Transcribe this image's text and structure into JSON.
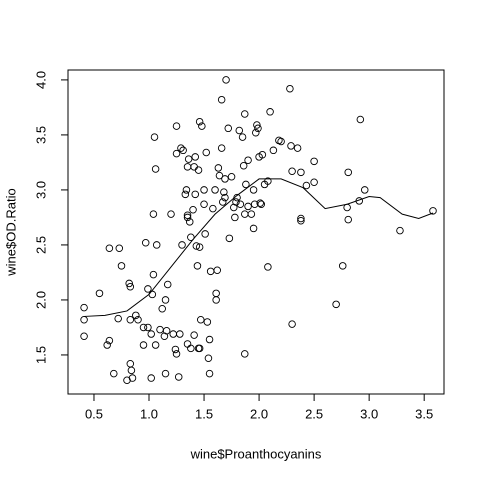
{
  "chart_data": {
    "type": "scatter",
    "x_label": "wine$Proanthocyanins",
    "y_label": "wine$OD.Ratio",
    "xlim": [
      0.264,
      3.68
    ],
    "ylim": [
      1.145,
      4.09
    ],
    "xticks": [
      0.5,
      {
        "value": 1.0,
        "label": "1.0"
      },
      1.5,
      {
        "value": 2.0,
        "label": "2.0"
      },
      2.5,
      {
        "value": 3.0,
        "label": "3.0"
      },
      3.5
    ],
    "yticks": [
      1.5,
      {
        "value": 2.0,
        "label": "2.0"
      },
      2.5,
      {
        "value": 3.0,
        "label": "3.0"
      },
      3.5,
      {
        "value": 4.0,
        "label": "4.0"
      }
    ],
    "color": "#000000",
    "x": [
      0.41,
      0.41,
      0.41,
      0.55,
      0.62,
      0.64,
      0.64,
      0.68,
      0.72,
      0.73,
      0.75,
      0.8,
      0.82,
      0.83,
      0.83,
      0.83,
      0.84,
      0.85,
      0.88,
      0.9,
      0.95,
      0.95,
      0.97,
      0.99,
      0.99,
      1.02,
      1.02,
      1.03,
      1.04,
      1.04,
      1.05,
      1.06,
      1.06,
      1.07,
      1.1,
      1.12,
      1.14,
      1.15,
      1.15,
      1.16,
      1.17,
      1.2,
      1.22,
      1.24,
      1.25,
      1.25,
      1.25,
      1.27,
      1.28,
      1.29,
      1.3,
      1.31,
      1.33,
      1.34,
      1.35,
      1.35,
      1.35,
      1.35,
      1.36,
      1.37,
      1.38,
      1.38,
      1.4,
      1.41,
      1.41,
      1.42,
      1.42,
      1.43,
      1.44,
      1.45,
      1.45,
      1.46,
      1.46,
      1.46,
      1.47,
      1.48,
      1.5,
      1.5,
      1.51,
      1.52,
      1.53,
      1.54,
      1.55,
      1.55,
      1.56,
      1.58,
      1.6,
      1.61,
      1.61,
      1.62,
      1.63,
      1.64,
      1.66,
      1.66,
      1.67,
      1.68,
      1.69,
      1.69,
      1.7,
      1.72,
      1.73,
      1.75,
      1.77,
      1.78,
      1.79,
      1.8,
      1.82,
      1.83,
      1.85,
      1.86,
      1.87,
      1.87,
      1.87,
      1.88,
      1.9,
      1.9,
      1.93,
      1.95,
      1.95,
      1.96,
      1.97,
      1.98,
      1.99,
      2.0,
      2.01,
      2.02,
      2.03,
      2.05,
      2.08,
      2.08,
      2.1,
      2.13,
      2.18,
      2.2,
      2.28,
      2.29,
      2.3,
      2.3,
      2.35,
      2.38,
      2.38,
      2.38,
      2.43,
      2.5,
      2.5,
      2.7,
      2.76,
      2.8,
      2.81,
      2.81,
      2.91,
      2.92,
      2.96,
      3.28,
      3.58
    ],
    "y": [
      1.93,
      1.82,
      1.67,
      2.06,
      1.59,
      1.63,
      2.47,
      1.33,
      1.83,
      2.47,
      2.31,
      1.27,
      2.15,
      2.12,
      1.82,
      1.42,
      1.36,
      1.29,
      1.86,
      1.82,
      1.59,
      1.75,
      2.52,
      1.75,
      2.1,
      1.29,
      1.69,
      2.05,
      2.23,
      2.78,
      3.48,
      3.19,
      1.59,
      2.5,
      1.73,
      1.92,
      1.67,
      2.0,
      1.33,
      1.72,
      2.14,
      2.78,
      1.69,
      1.55,
      1.51,
      3.58,
      3.33,
      1.3,
      1.69,
      3.38,
      2.5,
      3.36,
      2.96,
      3.0,
      3.21,
      2.77,
      1.6,
      2.75,
      3.28,
      2.71,
      2.57,
      1.56,
      2.82,
      1.68,
      3.21,
      2.96,
      3.3,
      2.49,
      2.31,
      3.18,
      1.56,
      1.56,
      2.48,
      3.62,
      1.82,
      3.58,
      3.0,
      2.87,
      2.6,
      3.34,
      1.8,
      1.47,
      1.64,
      1.33,
      2.26,
      2.83,
      3.0,
      2.06,
      2.0,
      2.27,
      3.2,
      3.13,
      3.82,
      3.38,
      2.89,
      2.98,
      2.93,
      3.1,
      4.0,
      3.56,
      2.56,
      3.12,
      2.84,
      2.75,
      2.89,
      2.93,
      3.54,
      2.87,
      3.48,
      3.22,
      3.69,
      1.51,
      2.78,
      3.05,
      3.27,
      2.85,
      2.78,
      3.0,
      2.65,
      2.87,
      3.52,
      3.59,
      3.56,
      3.3,
      2.88,
      2.87,
      3.32,
      3.05,
      3.08,
      2.3,
      3.71,
      3.36,
      3.45,
      3.44,
      3.92,
      3.4,
      1.78,
      3.17,
      3.38,
      2.74,
      2.72,
      3.16,
      3.04,
      3.07,
      3.26,
      1.96,
      2.31,
      2.84,
      2.73,
      3.16,
      2.9,
      3.64,
      3.0,
      2.63,
      2.81
    ],
    "smooth": {
      "x": [
        0.41,
        0.6,
        0.8,
        1.0,
        1.2,
        1.4,
        1.6,
        1.8,
        2.0,
        2.2,
        2.4,
        2.6,
        2.8,
        3.0,
        3.1,
        3.3,
        3.45,
        3.58
      ],
      "y": [
        1.85,
        1.86,
        1.9,
        2.05,
        2.3,
        2.55,
        2.78,
        2.95,
        3.1,
        3.1,
        3.02,
        2.83,
        2.87,
        2.94,
        2.93,
        2.78,
        2.74,
        2.79
      ]
    }
  }
}
